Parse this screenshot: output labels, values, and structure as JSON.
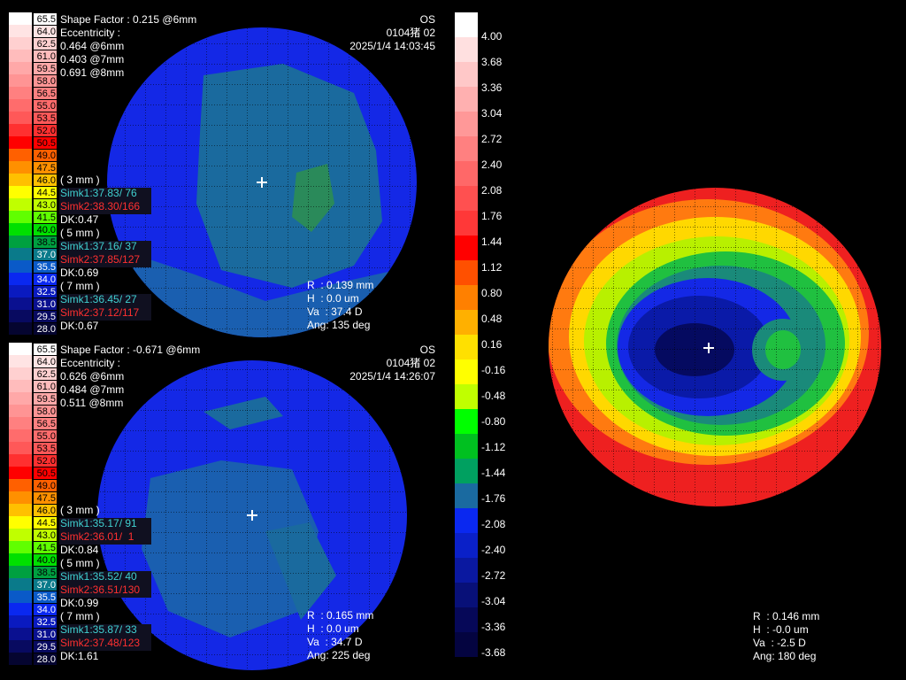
{
  "maps": [
    {
      "scale": [
        "65.5",
        "64.0",
        "62.5",
        "61.0",
        "59.5",
        "58.0",
        "56.5",
        "55.0",
        "53.5",
        "52.0",
        "50.5",
        "49.0",
        "47.5",
        "46.0",
        "44.5",
        "43.0",
        "41.5",
        "40.0",
        "38.5",
        "37.0",
        "35.5",
        "34.0",
        "32.5",
        "31.0",
        "29.5",
        "28.0"
      ],
      "shape_factor": "Shape Factor : 0.215 @6mm",
      "eccentricity": "Eccentricity :",
      "ecc": [
        "0.464 @6mm",
        "0.403 @7mm",
        "0.691 @8mm"
      ],
      "eye": "OS",
      "id": "0104猪 02",
      "date": "2025/1/4 14:03:45",
      "zones": [
        {
          "label": "( 3 mm )",
          "simk1": "Simk1:37.83/ 76",
          "simk2": "Simk2:38.30/166",
          "dk": "DK:0.47"
        },
        {
          "label": "( 5 mm )",
          "simk1": "Simk1:37.16/ 37",
          "simk2": "Simk2:37.85/127",
          "dk": "DK:0.69"
        },
        {
          "label": "( 7 mm )",
          "simk1": "Simk1:36.45/ 27",
          "simk2": "Simk2:37.12/117",
          "dk": "DK:0.67"
        }
      ],
      "readout": [
        "R  : 0.139 mm",
        "H  : 0.0 um",
        "Va  : 37.4 D",
        "Ang: 135 deg"
      ]
    },
    {
      "scale": [
        "65.5",
        "64.0",
        "62.5",
        "61.0",
        "59.5",
        "58.0",
        "56.5",
        "55.0",
        "53.5",
        "52.0",
        "50.5",
        "49.0",
        "47.5",
        "46.0",
        "44.5",
        "43.0",
        "41.5",
        "40.0",
        "38.5",
        "37.0",
        "35.5",
        "34.0",
        "32.5",
        "31.0",
        "29.5",
        "28.0"
      ],
      "shape_factor": "Shape Factor : -0.671 @6mm",
      "eccentricity": "Eccentricity :",
      "ecc": [
        "0.626 @6mm",
        "0.484 @7mm",
        "0.511 @8mm"
      ],
      "eye": "OS",
      "id": "0104猪 02",
      "date": "2025/1/4 14:26:07",
      "zones": [
        {
          "label": "( 3 mm )",
          "simk1": "Simk1:35.17/ 91",
          "simk2": "Simk2:36.01/  1",
          "dk": "DK:0.84"
        },
        {
          "label": "( 5 mm )",
          "simk1": "Simk1:35.52/ 40",
          "simk2": "Simk2:36.51/130",
          "dk": "DK:0.99"
        },
        {
          "label": "( 7 mm )",
          "simk1": "Simk1:35.87/ 33",
          "simk2": "Simk2:37.48/123",
          "dk": "DK:1.61"
        }
      ],
      "readout": [
        "R  : 0.165 mm",
        "H  : 0.0 um",
        "Va  : 34.7 D",
        "Ang: 225 deg"
      ]
    }
  ],
  "diff": {
    "scale": [
      "4.00",
      "3.68",
      "3.36",
      "3.04",
      "2.72",
      "2.40",
      "2.08",
      "1.76",
      "1.44",
      "1.12",
      "0.80",
      "0.48",
      "0.16",
      "-0.16",
      "-0.48",
      "-0.80",
      "-1.12",
      "-1.44",
      "-1.76",
      "-2.08",
      "-2.40",
      "-2.72",
      "-3.04",
      "-3.36",
      "-3.68"
    ],
    "readout": [
      "R  : 0.146 mm",
      "H  : -0.0 um",
      "Va  : -2.5 D",
      "Ang: 180 deg"
    ]
  }
}
